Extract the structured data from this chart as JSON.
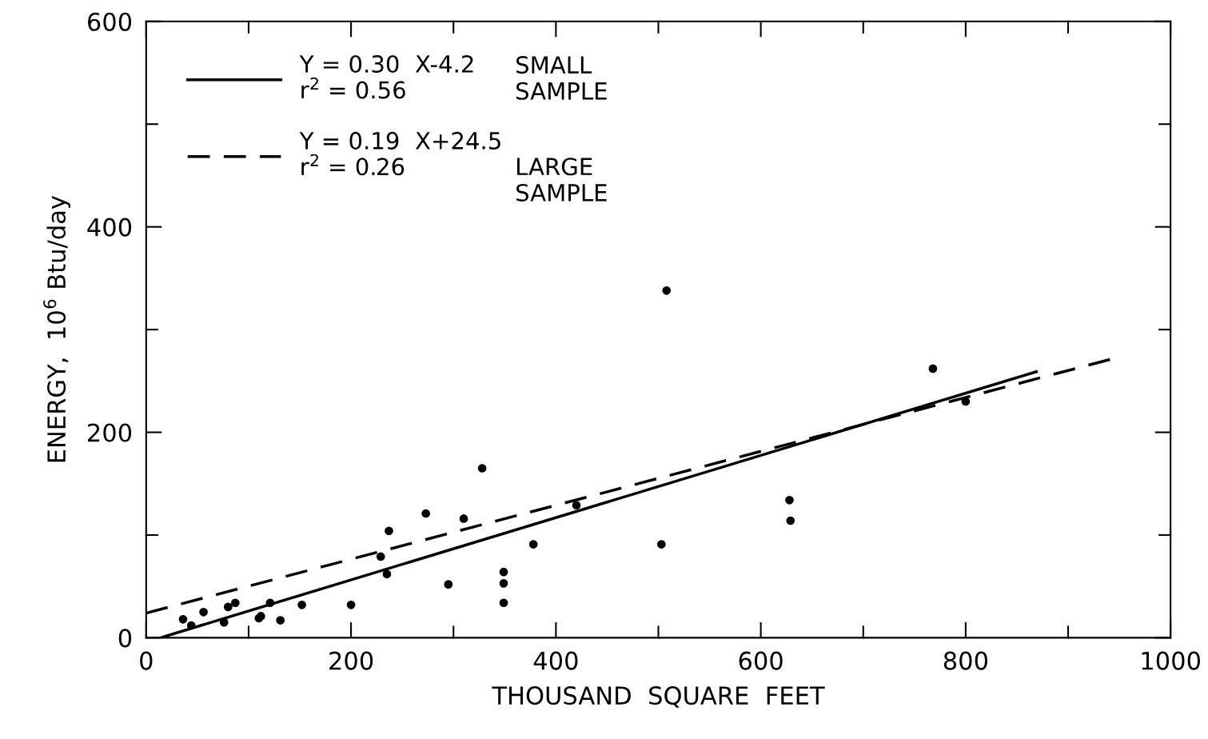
{
  "chart_data": {
    "type": "scatter",
    "xlabel": "THOUSAND  SQUARE  FEET",
    "ylabel": "ENERGY,  10$^{6}$ Btu/day",
    "xlim": [
      0,
      1000
    ],
    "ylim": [
      0,
      600
    ],
    "xticks": [
      0,
      {
        "value": 100,
        "label": null
      },
      200,
      {
        "value": 300,
        "label": null
      },
      400,
      {
        "value": 500,
        "label": null
      },
      600,
      {
        "value": 700,
        "label": null
      },
      800,
      {
        "value": 900,
        "label": null
      },
      1000
    ],
    "yticks": [
      0,
      {
        "value": 100,
        "label": null
      },
      200,
      {
        "value": 300,
        "label": null
      },
      400,
      {
        "value": 500,
        "label": null
      },
      600
    ],
    "grid": false,
    "legend": "top left",
    "series": [
      {
        "type": "scatter",
        "marker": "circle",
        "color": "#000000",
        "x": [
          36,
          44,
          56,
          76,
          80,
          87,
          110,
          112,
          121,
          131,
          152,
          200,
          229,
          235,
          237,
          273,
          295,
          310,
          328,
          349,
          349,
          349,
          378,
          420,
          503,
          508,
          628,
          629,
          768,
          800
        ],
        "values": [
          18,
          12,
          25,
          15,
          30,
          34,
          19,
          21,
          34,
          17,
          32,
          32,
          79,
          62,
          104,
          121,
          52,
          116,
          165,
          64,
          53,
          34,
          91,
          129,
          91,
          338,
          134,
          114,
          262,
          230
        ]
      },
      {
        "type": "line",
        "name": "Y = 0.30  X-4.2\nr$^{2}$ = 0.56",
        "color": "#000000",
        "line_style": "solid",
        "x": [
          14,
          869
        ],
        "values": [
          0,
          259
        ]
      },
      {
        "type": "line",
        "name": "Y = 0.19  X+24.5\nr$^{2}$ = 0.26",
        "color": "#000000",
        "line_style": "dashed",
        "x": [
          0,
          945
        ],
        "values": [
          24,
          272
        ]
      }
    ],
    "annotations": [
      "SMALL\nSAMPLE",
      "LARGE\nSAMPLE"
    ]
  }
}
